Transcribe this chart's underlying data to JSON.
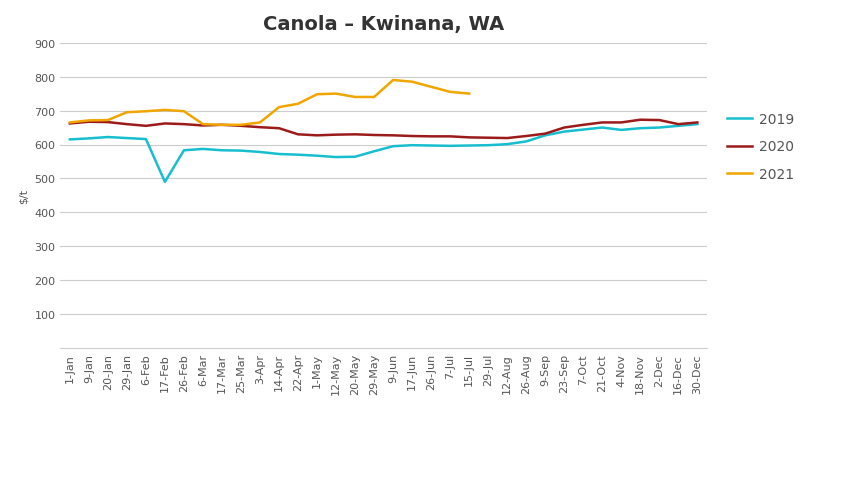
{
  "title": "Canola – Kwinana, WA",
  "ylabel": "$/t",
  "ylim": [
    0,
    900
  ],
  "yticks": [
    100,
    200,
    300,
    400,
    500,
    600,
    700,
    800,
    900
  ],
  "x_labels": [
    "1-Jan",
    "9-Jan",
    "20-Jan",
    "29-Jan",
    "6-Feb",
    "17-Feb",
    "26-Feb",
    "6-Mar",
    "17-Mar",
    "25-Mar",
    "3-Apr",
    "14-Apr",
    "22-Apr",
    "1-May",
    "12-May",
    "20-May",
    "29-May",
    "9-Jun",
    "17-Jun",
    "26-Jun",
    "7-Jul",
    "15-Jul",
    "29-Jul",
    "12-Aug",
    "26-Aug",
    "9-Sep",
    "23-Sep",
    "7-Oct",
    "21-Oct",
    "4-Nov",
    "18-Nov",
    "2-Dec",
    "16-Dec",
    "30-Dec"
  ],
  "series": {
    "2019": {
      "color": "#17BECF",
      "values": [
        615,
        618,
        622,
        619,
        616,
        490,
        583,
        587,
        583,
        582,
        578,
        572,
        570,
        567,
        563,
        564,
        580,
        595,
        598,
        597,
        596,
        597,
        598,
        601,
        609,
        627,
        638,
        644,
        650,
        643,
        648,
        650,
        655,
        660
      ]
    },
    "2020": {
      "color": "#9B1B1B",
      "values": [
        662,
        667,
        666,
        660,
        655,
        662,
        660,
        656,
        658,
        655,
        651,
        648,
        630,
        627,
        629,
        630,
        628,
        627,
        625,
        624,
        624,
        621,
        620,
        619,
        625,
        632,
        650,
        658,
        665,
        665,
        673,
        672,
        660,
        665
      ]
    },
    "2021": {
      "color": "#F0A500",
      "values": [
        665,
        671,
        672,
        695,
        698,
        702,
        698,
        660,
        658,
        658,
        665,
        710,
        720,
        748,
        750,
        740,
        740,
        790,
        785,
        770,
        755,
        750,
        null,
        null,
        null,
        null,
        null,
        null,
        null,
        null,
        null,
        null,
        null,
        null
      ]
    }
  },
  "background_color": "#FFFFFF",
  "grid_color": "#CCCCCC",
  "title_fontsize": 14,
  "tick_fontsize": 8,
  "legend_fontsize": 10,
  "line_width": 1.8
}
